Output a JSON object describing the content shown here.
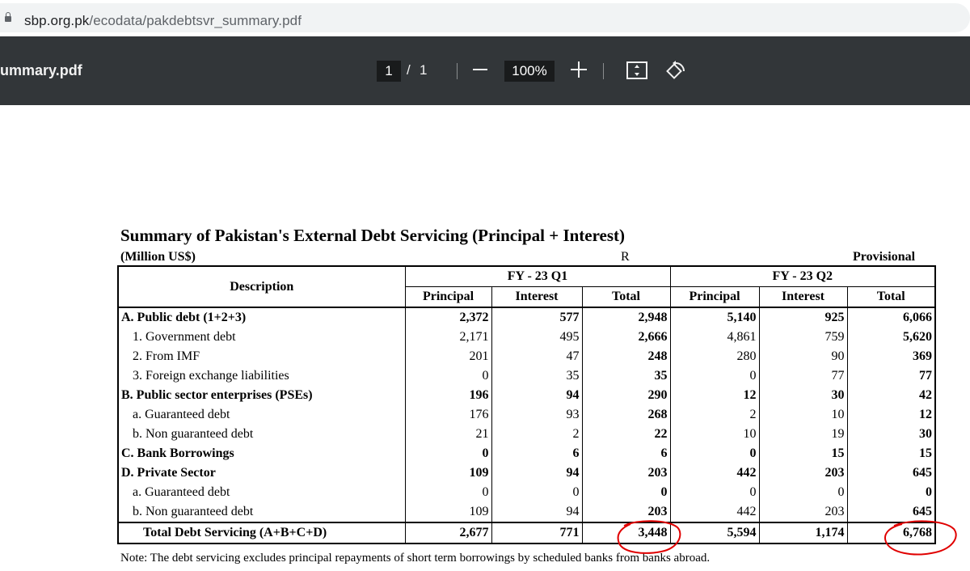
{
  "browser": {
    "url_host": "sbp.org.pk",
    "url_path": "/ecodata/pakdebtsvr_summary.pdf"
  },
  "toolbar": {
    "filename": "ummary.pdf",
    "page_current": "1",
    "page_separator": "/",
    "page_total": "1",
    "zoom": "100%",
    "icons": [
      "minus-icon",
      "plus-icon",
      "fit-page-icon",
      "rotate-icon"
    ]
  },
  "document": {
    "title": "Summary of Pakistan's External Debt Servicing (Principal + Interest)",
    "unit": "(Million US$)",
    "mark": "R",
    "status": "Provisional",
    "note": "Note: The debt servicing excludes principal repayments of short term borrowings by scheduled banks from banks abroad.",
    "table": {
      "desc_header": "Description",
      "periods": [
        "FY - 23 Q1",
        "FY - 23 Q2"
      ],
      "subheaders": [
        "Principal",
        "Interest",
        "Total",
        "Principal",
        "Interest",
        "Total"
      ],
      "rows": [
        {
          "label": "A. Public debt (1+2+3)",
          "values": [
            "2,372",
            "577",
            "2,948",
            "5,140",
            "925",
            "6,066"
          ]
        },
        {
          "label": "1. Government debt",
          "values": [
            "2,171",
            "495",
            "2,666",
            "4,861",
            "759",
            "5,620"
          ]
        },
        {
          "label": "2. From IMF",
          "values": [
            "201",
            "47",
            "248",
            "280",
            "90",
            "369"
          ]
        },
        {
          "label": "3. Foreign exchange liabilities",
          "values": [
            "0",
            "35",
            "35",
            "0",
            "77",
            "77"
          ]
        },
        {
          "label": "B. Public sector enterprises (PSEs)",
          "values": [
            "196",
            "94",
            "290",
            "12",
            "30",
            "42"
          ]
        },
        {
          "label": "a. Guaranteed debt",
          "values": [
            "176",
            "93",
            "268",
            "2",
            "10",
            "12"
          ]
        },
        {
          "label": "b. Non guaranteed debt",
          "values": [
            "21",
            "2",
            "22",
            "10",
            "19",
            "30"
          ]
        },
        {
          "label": "C. Bank Borrowings",
          "values": [
            "0",
            "6",
            "6",
            "0",
            "15",
            "15"
          ]
        },
        {
          "label": "D. Private Sector",
          "values": [
            "109",
            "94",
            "203",
            "442",
            "203",
            "645"
          ]
        },
        {
          "label": "a. Guaranteed debt",
          "values": [
            "0",
            "0",
            "0",
            "0",
            "0",
            "0"
          ]
        },
        {
          "label": "b. Non guaranteed debt",
          "values": [
            "109",
            "94",
            "203",
            "442",
            "203",
            "645"
          ]
        }
      ],
      "total_row": {
        "label": "Total Debt Servicing (A+B+C+D)",
        "values": [
          "2,677",
          "771",
          "3,448",
          "5,594",
          "1,174",
          "6,768"
        ]
      }
    },
    "highlight_color": "#e00000"
  }
}
